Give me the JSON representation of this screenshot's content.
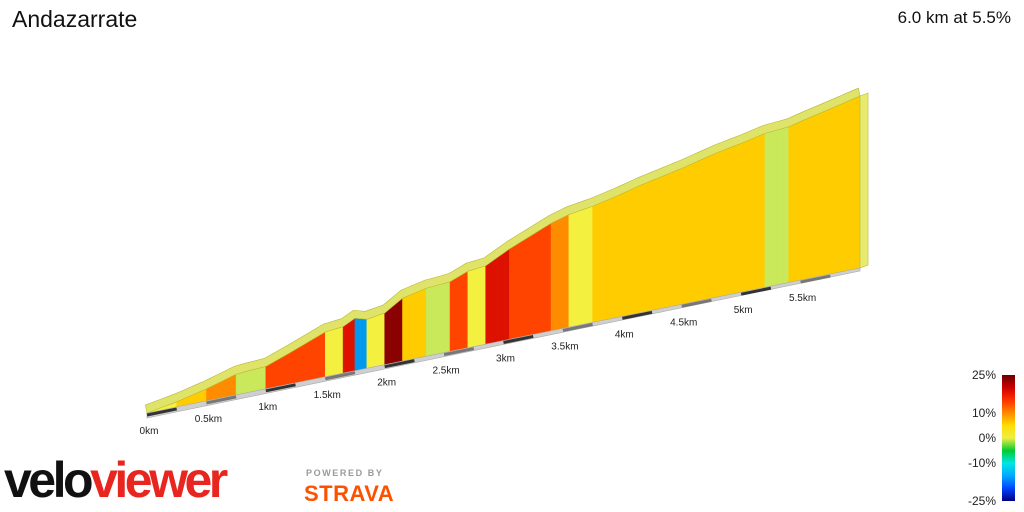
{
  "segment": {
    "name": "Andazarrate",
    "summary": "6.0 km at 5.5%"
  },
  "branding": {
    "logo_part1": "velo",
    "logo_part2": "viewer",
    "powered_by": "POWERED BY",
    "strava": "STRAVA",
    "colors": {
      "velo": "#111111",
      "viewer": "#e8261f",
      "strava": "#fc5200",
      "powered_by": "#9a9a9a"
    }
  },
  "chart_data": {
    "type": "area",
    "style": "3d-elevation-profile",
    "title": "Andazarrate",
    "subtitle": "6.0 km at 5.5%",
    "x_unit": "km",
    "xlim": [
      0,
      6.0
    ],
    "x_ticks": [
      "0km",
      "0.5km",
      "1km",
      "1.5km",
      "2km",
      "2.5km",
      "3km",
      "3.5km",
      "4km",
      "4.5km",
      "5km",
      "5.5km"
    ],
    "x_tick_values": [
      0,
      0.5,
      1.0,
      1.5,
      2.0,
      2.5,
      3.0,
      3.5,
      4.0,
      4.5,
      5.0,
      5.5
    ],
    "y_unit": "m (relative elevation)",
    "profile_km": [
      0,
      0.25,
      0.5,
      0.75,
      0.85,
      1.0,
      1.2,
      1.5,
      1.65,
      1.75,
      1.85,
      2.0,
      2.15,
      2.35,
      2.55,
      2.7,
      2.85,
      3.05,
      3.4,
      3.55,
      3.75,
      3.95,
      4.15,
      4.5,
      4.8,
      5.0,
      5.2,
      5.4,
      5.55,
      5.75,
      6.0
    ],
    "profile_elev": [
      0,
      12,
      28,
      48,
      50,
      52,
      72,
      104,
      108,
      122,
      114,
      120,
      146,
      158,
      162,
      178,
      182,
      210,
      250,
      262,
      270,
      282,
      296,
      316,
      336,
      346,
      358,
      362,
      372,
      384,
      400
    ],
    "gradient_scale": {
      "labels": [
        "25%",
        "10%",
        "0%",
        "-10%",
        "-25%"
      ],
      "values": [
        25,
        10,
        0,
        -10,
        -25
      ],
      "colors": [
        "#6b0000",
        "#cc0000",
        "#ff3300",
        "#ff8800",
        "#ffdd00",
        "#eeee44",
        "#00cc33",
        "#00e5e5",
        "#00aaff",
        "#0044ff",
        "#000080"
      ]
    },
    "grid": false,
    "legend": "right"
  }
}
